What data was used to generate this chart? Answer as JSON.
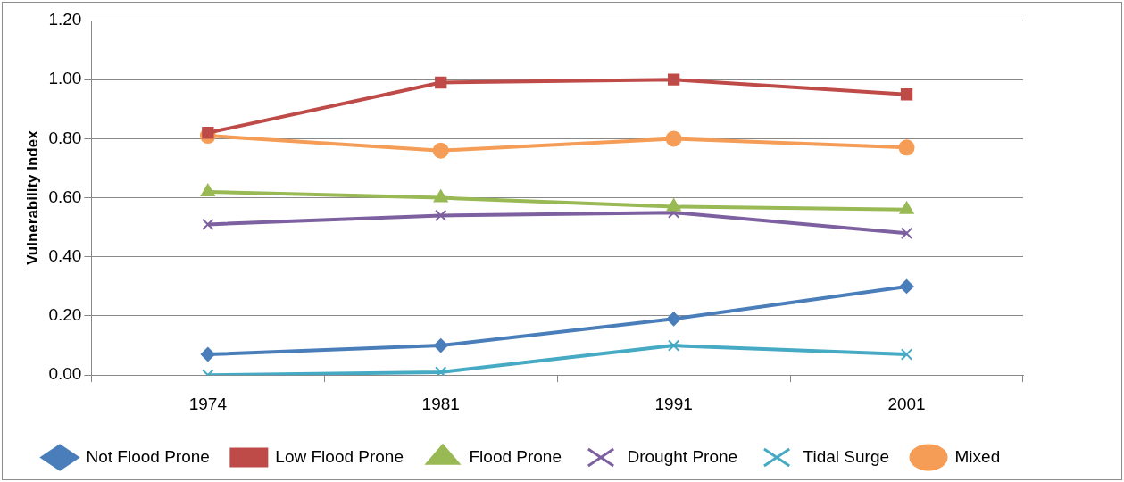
{
  "chart_data": {
    "type": "line",
    "ylabel": "Vulnerability Index",
    "categories": [
      "1974",
      "1981",
      "1991",
      "2001"
    ],
    "ylim": [
      0,
      1.2
    ],
    "yticks": [
      {
        "value": 0,
        "label": "0.00"
      },
      {
        "value": 0.2,
        "label": "0.20"
      },
      {
        "value": 0.4,
        "label": "0.40"
      },
      {
        "value": 0.6,
        "label": "0.60"
      },
      {
        "value": 0.8,
        "label": "0.80"
      },
      {
        "value": 1,
        "label": "1.00"
      },
      {
        "value": 1.2,
        "label": "1.20"
      }
    ],
    "grid": "y",
    "legend": "bottom",
    "series": [
      {
        "name": "Not Flood Prone",
        "color": "#4a7ebb",
        "marker": "diamond",
        "values": [
          0.07,
          0.1,
          0.19,
          0.3
        ]
      },
      {
        "name": "Low Flood Prone",
        "color": "#be4b48",
        "marker": "square",
        "values": [
          0.82,
          0.99,
          1.0,
          0.95
        ]
      },
      {
        "name": "Flood Prone",
        "color": "#98b954",
        "marker": "triangle",
        "values": [
          0.62,
          0.6,
          0.57,
          0.56
        ]
      },
      {
        "name": "Drought Prone",
        "color": "#7d60a0",
        "marker": "cross",
        "values": [
          0.51,
          0.54,
          0.55,
          0.48
        ]
      },
      {
        "name": "Tidal Surge",
        "color": "#46aac5",
        "marker": "cross",
        "values": [
          0.0,
          0.01,
          0.1,
          0.07
        ]
      },
      {
        "name": "Mixed",
        "color": "#f59d56",
        "marker": "circle",
        "values": [
          0.81,
          0.76,
          0.8,
          0.77
        ]
      }
    ]
  }
}
